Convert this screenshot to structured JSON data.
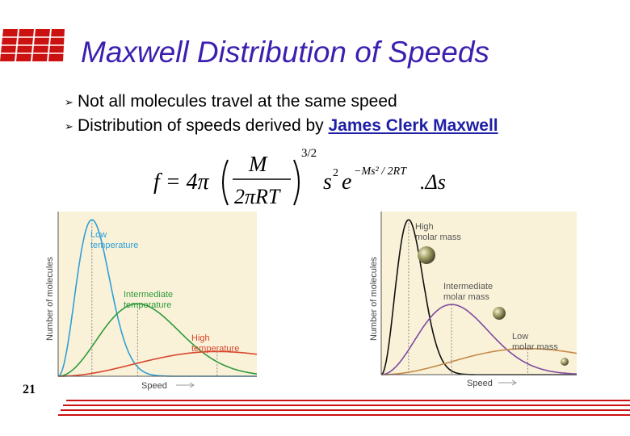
{
  "slide": {
    "title": "Maxwell Distribution of Speeds",
    "bullets": [
      {
        "text": "Not all molecules travel at the same speed"
      },
      {
        "text": "Distribution of speeds derived by ",
        "link": "James Clerk Maxwell"
      }
    ],
    "page_number": "21",
    "colors": {
      "title": "#3d1fb0",
      "logo": "#cc1111",
      "link": "#1f1fa6"
    }
  },
  "formula": {
    "lhs": "f = 4π",
    "numerator": "M",
    "denominator": "2πRT",
    "exponent": "3/2",
    "factor": "s",
    "factor_power": "2",
    "base": "e",
    "exp_term": "−Ms² / 2RT",
    "tail": ".Δs"
  },
  "chart_data": [
    {
      "type": "line",
      "ylabel": "Number of molecules",
      "xlabel": "Speed",
      "series": [
        {
          "name": "Low temperature",
          "color": "#2e9fd8",
          "peak": 0.17,
          "height": 0.95
        },
        {
          "name": "Intermediate temperature",
          "color": "#2e9a3c",
          "peak": 0.4,
          "height": 0.44
        },
        {
          "name": "High temperature",
          "color": "#d8452e",
          "peak": 0.8,
          "height": 0.15
        }
      ]
    },
    {
      "type": "line",
      "ylabel": "Number of molecules",
      "xlabel": "Speed",
      "series": [
        {
          "name": "High molar mass",
          "color": "#111111",
          "peak": 0.14,
          "height": 0.95
        },
        {
          "name": "Intermediate molar mass",
          "color": "#7d4aa0",
          "peak": 0.36,
          "height": 0.43
        },
        {
          "name": "Low molar mass",
          "color": "#c48a4a",
          "peak": 0.75,
          "height": 0.16
        }
      ]
    }
  ],
  "charts": [
    {
      "labels": [
        {
          "lines": [
            "Low",
            "temperature"
          ],
          "color": "#2e9fd8"
        },
        {
          "lines": [
            "Intermediate",
            "temperature"
          ],
          "color": "#2e9a3c"
        },
        {
          "lines": [
            "High",
            "temperature"
          ],
          "color": "#d8452e"
        }
      ]
    },
    {
      "labels": [
        {
          "lines": [
            "High",
            "molar mass"
          ],
          "color": "#555555"
        },
        {
          "lines": [
            "Intermediate",
            "molar mass"
          ],
          "color": "#555555"
        },
        {
          "lines": [
            "Low",
            "molar mass"
          ],
          "color": "#555555"
        }
      ]
    }
  ]
}
